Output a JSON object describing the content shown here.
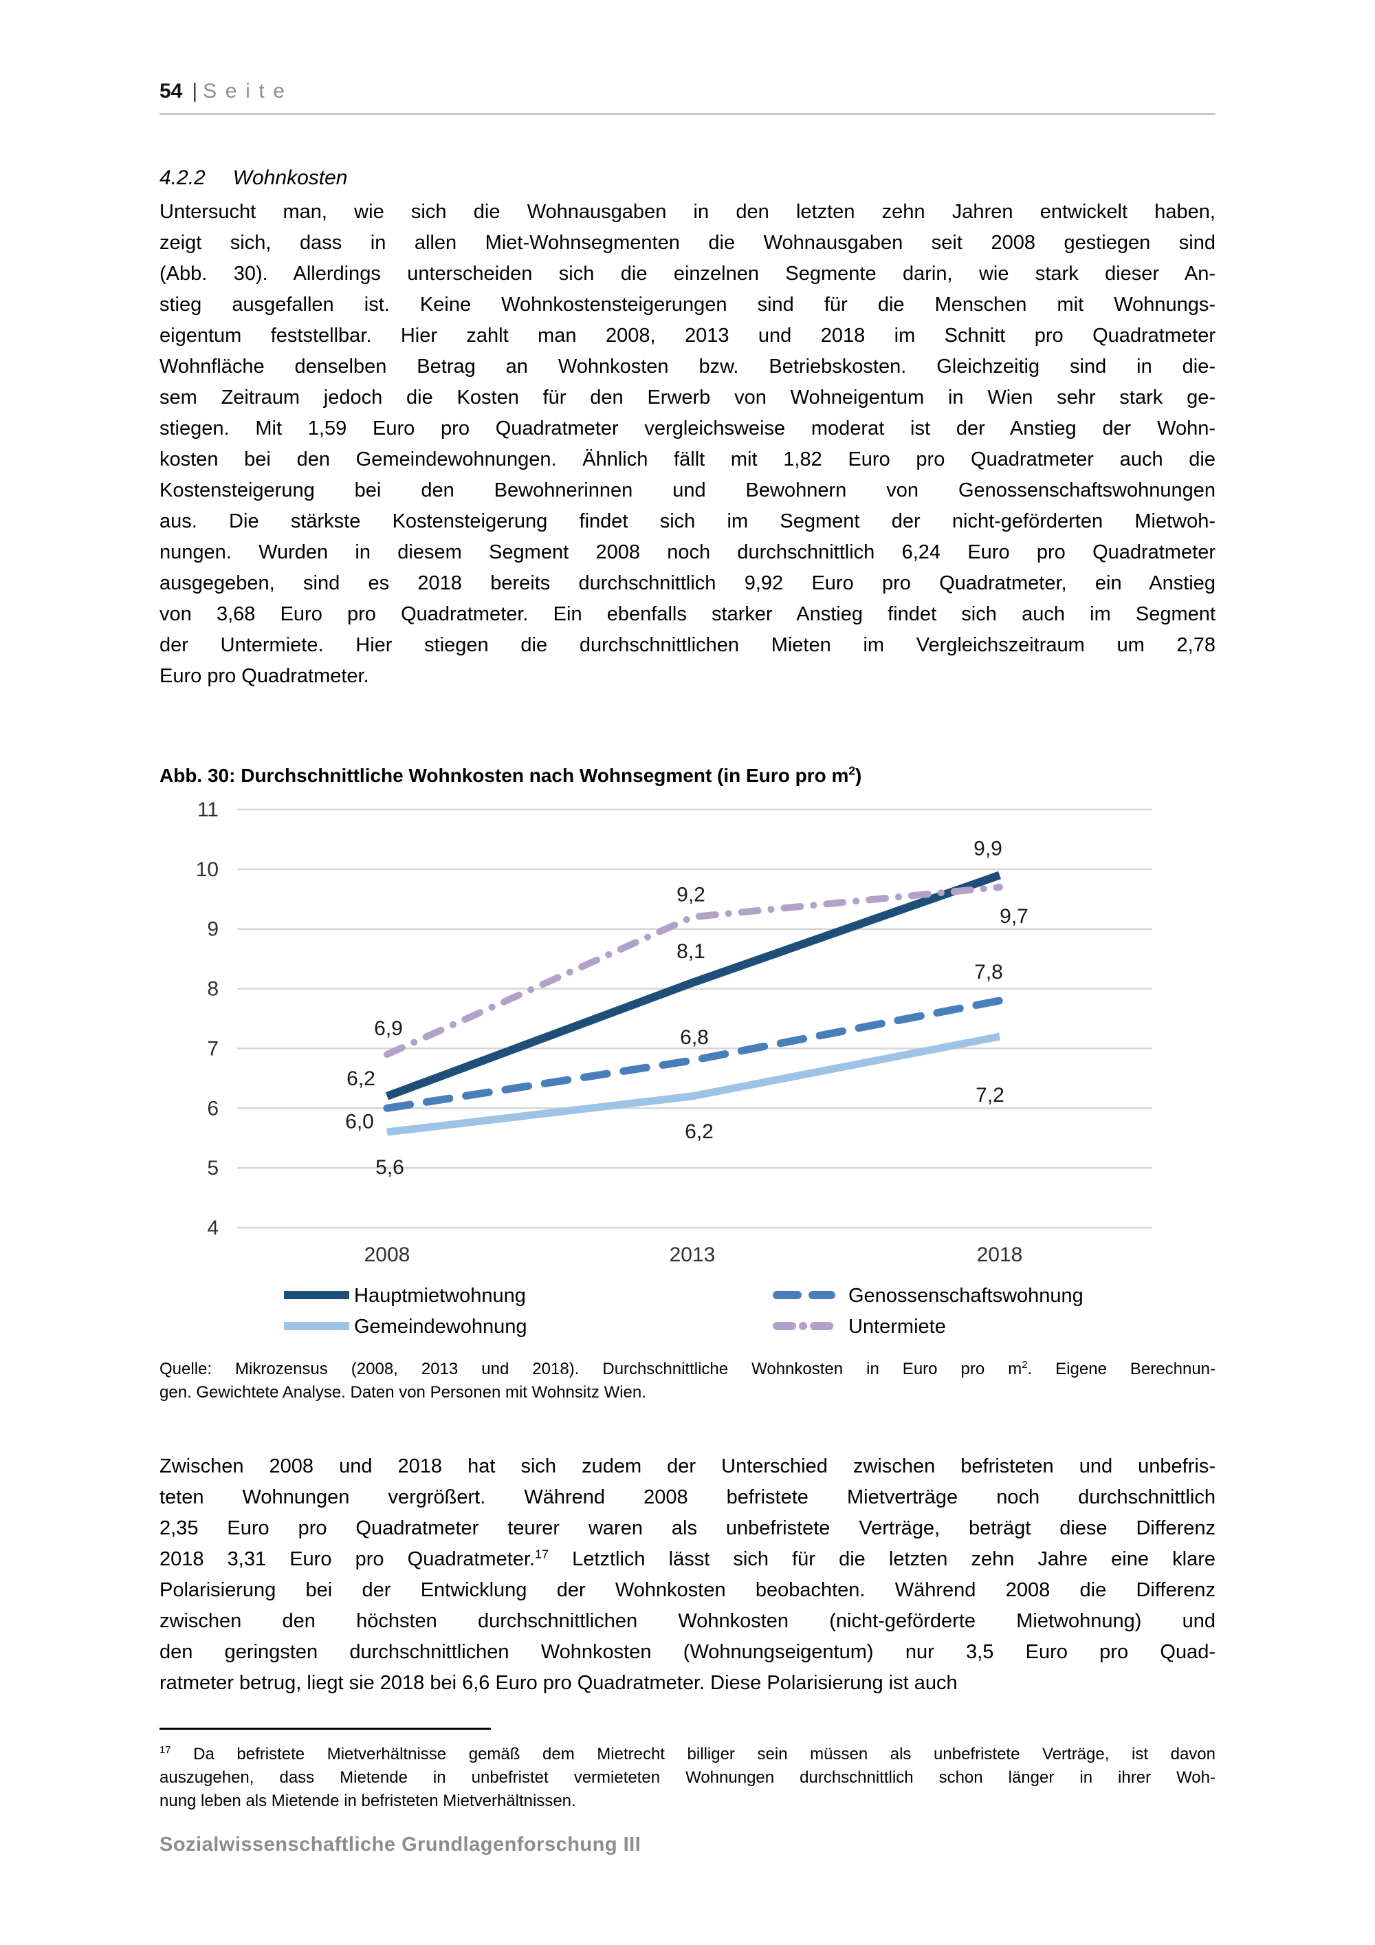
{
  "header": {
    "page_number": "54",
    "separator": "|",
    "label": "Seite"
  },
  "section": {
    "number": "4.2.2",
    "title": "Wohnkosten"
  },
  "paragraphs": {
    "p1_lines": [
      "Untersucht man, wie sich die Wohnausgaben in den letzten zehn Jahren entwickelt haben,",
      "zeigt sich, dass in allen Miet-Wohnsegmenten die Wohnausgaben seit 2008 gestiegen sind",
      "(Abb. 30). Allerdings unterscheiden sich die einzelnen Segmente darin, wie stark dieser An-",
      "stieg ausgefallen ist. Keine Wohnkostensteigerungen sind für die Menschen mit Wohnungs-",
      "eigentum feststellbar. Hier zahlt man 2008, 2013 und 2018 im Schnitt pro Quadratmeter",
      "Wohnfläche denselben Betrag an Wohnkosten bzw. Betriebskosten. Gleichzeitig sind in die-",
      "sem Zeitraum jedoch die Kosten für den Erwerb von Wohneigentum in Wien sehr stark ge-",
      "stiegen. Mit 1,59 Euro pro Quadratmeter vergleichsweise moderat ist der Anstieg der Wohn-",
      "kosten bei den Gemeindewohnungen. Ähnlich fällt mit 1,82 Euro pro Quadratmeter auch die",
      "Kostensteigerung bei den Bewohnerinnen und Bewohnern von Genossenschaftswohnungen",
      "aus. Die stärkste Kostensteigerung findet sich im Segment der nicht-geförderten Mietwoh-",
      "nungen. Wurden in diesem Segment 2008 noch durchschnittlich 6,24 Euro pro Quadratmeter",
      "ausgegeben, sind es 2018 bereits durchschnittlich 9,92 Euro pro Quadratmeter, ein Anstieg",
      "von 3,68 Euro pro Quadratmeter. Ein ebenfalls starker Anstieg findet sich auch im Segment",
      "der Untermiete. Hier stiegen die durchschnittlichen Mieten im Vergleichszeitraum um 2,78",
      "Euro pro Quadratmeter."
    ],
    "p2_lines": [
      "Zwischen 2008 und 2018 hat sich zudem der Unterschied zwischen befristeten und unbefris-",
      "teten Wohnungen vergrößert. Während 2008 befristete Mietverträge noch durchschnittlich",
      "2,35 Euro pro Quadratmeter teurer waren als unbefristete Verträge, beträgt diese Differenz",
      "2018 3,31 Euro pro Quadratmeter.[[17]] Letztlich lässt sich für die letzten zehn Jahre eine klare",
      "Polarisierung bei der Entwicklung der Wohnkosten beobachten. Während 2008 die Differenz",
      "zwischen den höchsten durchschnittlichen Wohnkosten (nicht-geförderte Mietwohnung) und",
      "den geringsten durchschnittlichen Wohnkosten (Wohnungseigentum) nur 3,5 Euro pro Quad-",
      "ratmeter betrug, liegt sie 2018 bei 6,6 Euro pro Quadratmeter. Diese Polarisierung ist auch"
    ]
  },
  "figure": {
    "caption_title": "Abb. 30: Durchschnittliche Wohnkosten nach Wohnsegment (in Euro pro m[[2]])",
    "source_lines": [
      "Quelle: Mikrozensus (2008, 2013 und 2018). Durchschnittliche Wohnkosten in Euro pro m[[2]]. Eigene Berechnun-",
      "gen. Gewichtete Analyse. Daten von Personen mit Wohnsitz Wien."
    ]
  },
  "footnote": {
    "lines": [
      "[[17]] Da befristete Mietverhältnisse gemäß dem Mietrecht billiger sein müssen als unbefristete Verträge, ist davon",
      "auszugehen, dass Mietende in unbefristet vermieteten Wohnungen durchschnittlich schon länger in ihrer Woh-",
      "nung leben als Mietende in befristeten Mietverhältnissen."
    ]
  },
  "footer": {
    "text": "Sozialwissenschaftliche Grundlagenforschung III"
  },
  "chart_data": {
    "type": "line",
    "title": "Abb. 30: Durchschnittliche Wohnkosten nach Wohnsegment (in Euro pro m²)",
    "categories": [
      "2008",
      "2013",
      "2018"
    ],
    "series": [
      {
        "name": "Hauptmietwohnung",
        "values": [
          6.2,
          8.1,
          9.9
        ],
        "labels": [
          "6,2",
          "8,1",
          "9,9"
        ],
        "color": "#1F4E79",
        "style": "solid"
      },
      {
        "name": "Genossenschaftswohnung",
        "values": [
          6.0,
          6.8,
          7.8
        ],
        "labels": [
          "6,0",
          "6,8",
          "7,8"
        ],
        "color": "#4A7EBB",
        "style": "dashed"
      },
      {
        "name": "Gemeindewohnung",
        "values": [
          5.6,
          6.2,
          7.2
        ],
        "labels": [
          "5,6",
          "6,2",
          "7,2"
        ],
        "color": "#9DC3E6",
        "style": "solid"
      },
      {
        "name": "Untermiete",
        "values": [
          6.9,
          9.2,
          9.7
        ],
        "labels": [
          "6,9",
          "9,2",
          "9,7"
        ],
        "color": "#B3A2C7",
        "style": "dashdot"
      }
    ],
    "xlabel": "",
    "ylabel": "",
    "ylim": [
      4,
      11
    ],
    "yticks": [
      4,
      5,
      6,
      7,
      8,
      9,
      10,
      11
    ],
    "grid": true,
    "gridline_color": "#D6D6D6",
    "tick_label_color": "#303030",
    "data_label_color": "#1A1A1A",
    "legend_position": "bottom"
  }
}
